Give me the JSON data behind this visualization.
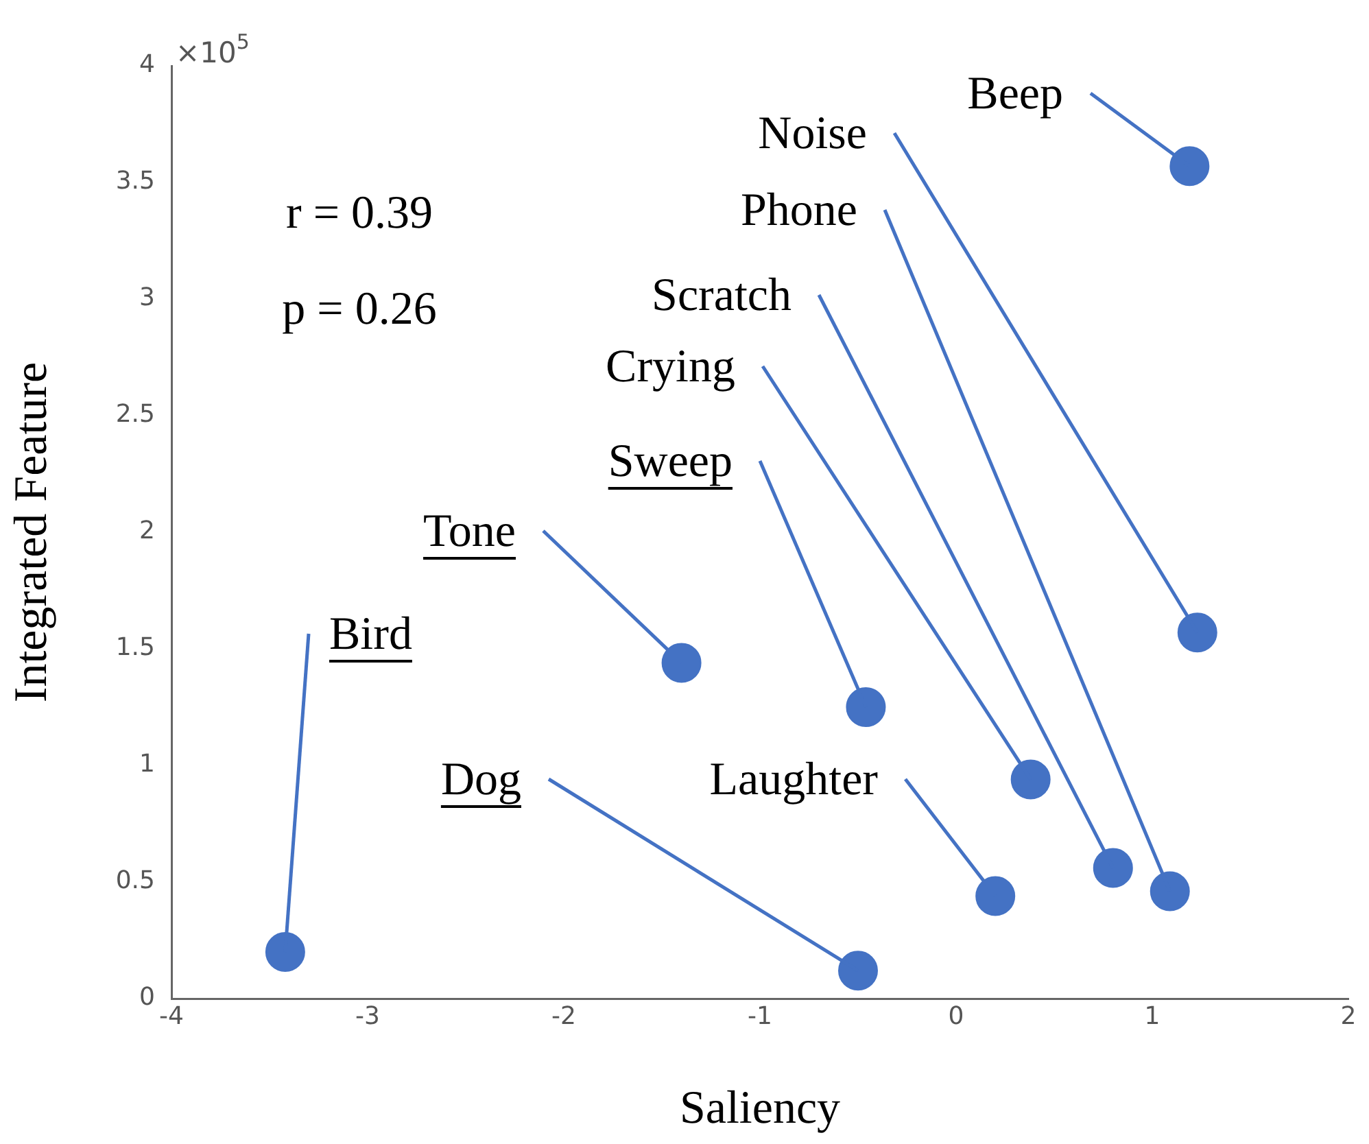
{
  "chart_data": {
    "type": "scatter",
    "xlabel": "Saliency",
    "ylabel": "Integrated Feature",
    "x": [
      -3.42,
      -0.5,
      -1.4,
      -0.46,
      0.38,
      0.2,
      0.8,
      1.09,
      1.23,
      1.19
    ],
    "series": [
      {
        "color": "#4472c4",
        "values": [
          0.2,
          0.12,
          1.44,
          1.25,
          0.94,
          0.44,
          0.56,
          0.46,
          1.57,
          3.57
        ]
      }
    ],
    "xlim": [
      -4,
      2
    ],
    "xticks": [
      -4,
      -3,
      -2,
      -1,
      0,
      1,
      2
    ],
    "ylim": [
      0,
      4
    ],
    "yticks": [
      0,
      0.5,
      1,
      1.5,
      2,
      2.5,
      3,
      3.5,
      4
    ],
    "marker": "circle",
    "legend": false,
    "annotations": [
      "×10$^{5}$",
      "r = 0.39",
      "p = 0.26",
      {
        "text": "Bird",
        "x": -3.42,
        "y": 0.2
      },
      {
        "text": "Dog",
        "x": -0.5,
        "y": 0.12
      },
      {
        "text": "Tone",
        "x": -1.4,
        "y": 1.44
      },
      {
        "text": "Sweep",
        "x": -0.46,
        "y": 1.25
      },
      {
        "text": "Crying",
        "x": 0.38,
        "y": 0.94
      },
      {
        "text": "Laughter",
        "x": 0.2,
        "y": 0.44
      },
      {
        "text": "Scratch",
        "x": 0.8,
        "y": 0.56
      },
      {
        "text": "Phone",
        "x": 1.09,
        "y": 0.46
      },
      {
        "text": "Noise",
        "x": 1.23,
        "y": 1.57
      },
      {
        "text": "Beep",
        "x": 1.19,
        "y": 3.57
      }
    ]
  }
}
